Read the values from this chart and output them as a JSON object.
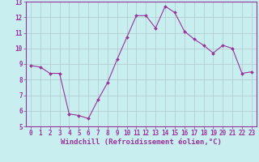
{
  "x": [
    0,
    1,
    2,
    3,
    4,
    5,
    6,
    7,
    8,
    9,
    10,
    11,
    12,
    13,
    14,
    15,
    16,
    17,
    18,
    19,
    20,
    21,
    22,
    23
  ],
  "y": [
    8.9,
    8.8,
    8.4,
    8.4,
    5.8,
    5.7,
    5.5,
    6.7,
    7.8,
    9.3,
    10.7,
    12.1,
    12.1,
    11.3,
    12.7,
    12.3,
    11.1,
    10.6,
    10.2,
    9.7,
    10.2,
    10.0,
    8.4,
    8.5
  ],
  "line_color": "#993399",
  "marker_color": "#993399",
  "bg_color": "#c8eef0",
  "grid_color": "#b0c8ca",
  "axis_color": "#993399",
  "xlabel": "Windchill (Refroidissement éolien,°C)",
  "ylim": [
    5,
    13
  ],
  "xlim": [
    -0.5,
    23.5
  ],
  "yticks": [
    5,
    6,
    7,
    8,
    9,
    10,
    11,
    12,
    13
  ],
  "xticks": [
    0,
    1,
    2,
    3,
    4,
    5,
    6,
    7,
    8,
    9,
    10,
    11,
    12,
    13,
    14,
    15,
    16,
    17,
    18,
    19,
    20,
    21,
    22,
    23
  ],
  "tick_fontsize": 5.5,
  "label_fontsize": 6.5
}
